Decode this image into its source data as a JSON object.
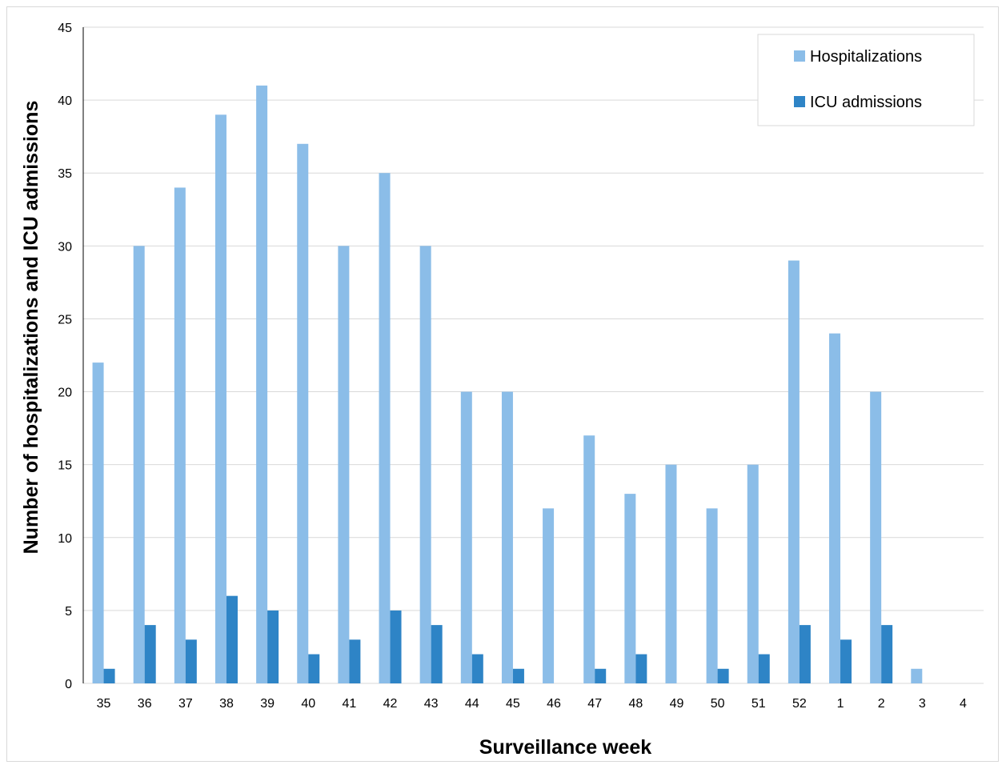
{
  "chart_data": {
    "type": "bar",
    "xlabel": "Surveillance week",
    "ylabel": "Number of  hospitalizations and ICU admissions",
    "ylim": [
      0,
      45
    ],
    "yticks": [
      0,
      5,
      10,
      15,
      20,
      25,
      30,
      35,
      40,
      45
    ],
    "grid": true,
    "legend_position": "top-right",
    "categories": [
      "35",
      "36",
      "37",
      "38",
      "39",
      "40",
      "41",
      "42",
      "43",
      "44",
      "45",
      "46",
      "47",
      "48",
      "49",
      "50",
      "51",
      "52",
      "1",
      "2",
      "3",
      "4"
    ],
    "series": [
      {
        "name": "Hospitalizations",
        "color": "#8bbde8",
        "values": [
          22,
          30,
          34,
          39,
          41,
          37,
          30,
          35,
          30,
          20,
          20,
          12,
          17,
          13,
          15,
          12,
          15,
          29,
          24,
          20,
          1,
          0
        ]
      },
      {
        "name": "ICU admissions",
        "color": "#2e84c6",
        "values": [
          1,
          4,
          3,
          6,
          5,
          2,
          3,
          5,
          4,
          2,
          1,
          0,
          1,
          2,
          0,
          1,
          2,
          4,
          3,
          4,
          0,
          0
        ]
      }
    ]
  }
}
